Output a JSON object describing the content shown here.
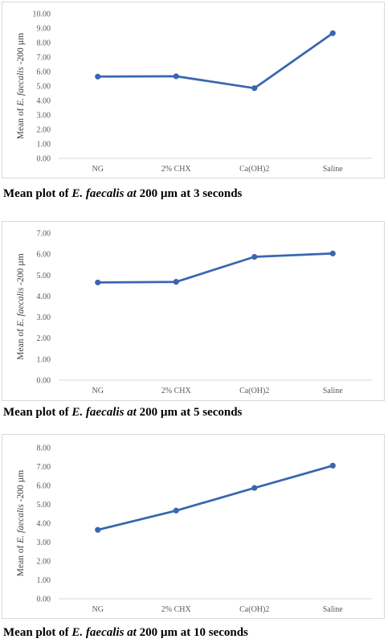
{
  "chart_data": [
    {
      "type": "line",
      "categories": [
        "NG",
        "2% CHX",
        "Ca(OH)2",
        "Saline"
      ],
      "series": [
        {
          "values": [
            5.65,
            5.67,
            4.85,
            8.65
          ]
        }
      ],
      "ylim": [
        0,
        10
      ],
      "yticks": [
        "0.00",
        "1.00",
        "2.00",
        "3.00",
        "4.00",
        "5.00",
        "6.00",
        "7.00",
        "8.00",
        "9.00",
        "10.00"
      ],
      "ylabel_prefix": "Mean of ",
      "ylabel_italic": "E. faecalis",
      "ylabel_suffix": " -200 µm",
      "color": "#3a66b0",
      "grid": false,
      "caption": {
        "prefix": "Mean plot of ",
        "italic": "E. faecalis at",
        "suffix": " 200 µm at 3 seconds"
      }
    },
    {
      "type": "line",
      "categories": [
        "NG",
        "2% CHX",
        "Ca(OH)2",
        "Saline"
      ],
      "series": [
        {
          "values": [
            4.65,
            4.68,
            5.87,
            6.03
          ]
        }
      ],
      "ylim": [
        0,
        7
      ],
      "yticks": [
        "0.00",
        "1.00",
        "2.00",
        "3.00",
        "4.00",
        "5.00",
        "6.00",
        "7.00"
      ],
      "ylabel_prefix": "Mean of ",
      "ylabel_italic": "E. faecalis",
      "ylabel_suffix": " -200 µm",
      "color": "#3a66b0",
      "grid": false,
      "caption": {
        "prefix": "Mean plot of ",
        "italic": "E. faecalis at",
        "suffix": " 200 µm at 5 seconds"
      }
    },
    {
      "type": "line",
      "categories": [
        "NG",
        "2% CHX",
        "Ca(OH)2",
        "Saline"
      ],
      "series": [
        {
          "values": [
            3.65,
            4.67,
            5.87,
            7.05
          ]
        }
      ],
      "ylim": [
        0,
        8
      ],
      "yticks": [
        "0.00",
        "1.00",
        "2.00",
        "3.00",
        "4.00",
        "5.00",
        "6.00",
        "7.00",
        "8.00"
      ],
      "ylabel_prefix": "Mean of ",
      "ylabel_italic": "E. faecalis",
      "ylabel_suffix": " -200 µm",
      "color": "#3a66b0",
      "grid": false,
      "caption": {
        "prefix": "Mean plot of ",
        "italic": "E. faecalis at",
        "suffix": " 200 µm at 10 seconds"
      }
    }
  ]
}
